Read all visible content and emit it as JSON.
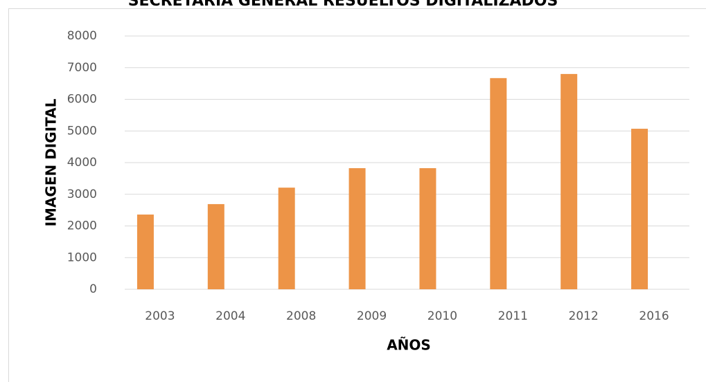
{
  "chart_data": {
    "type": "bar",
    "title": "SECRETARIA GENERAL RESUELTOS DIGITALIZADOS",
    "x_label": "AÑOS",
    "y_label": "IMAGEN DIGITAL",
    "categories": [
      "2003",
      "2004",
      "2008",
      "2009",
      "2010",
      "2011",
      "2012",
      "2016"
    ],
    "values": [
      2360,
      2690,
      3210,
      3825,
      3825,
      6670,
      6800,
      5070
    ],
    "color": "#ed9447",
    "ylim": [
      0,
      8000
    ],
    "yticks": [
      0,
      1000,
      2000,
      3000,
      4000,
      5000,
      6000,
      7000,
      8000
    ],
    "grid": true
  }
}
